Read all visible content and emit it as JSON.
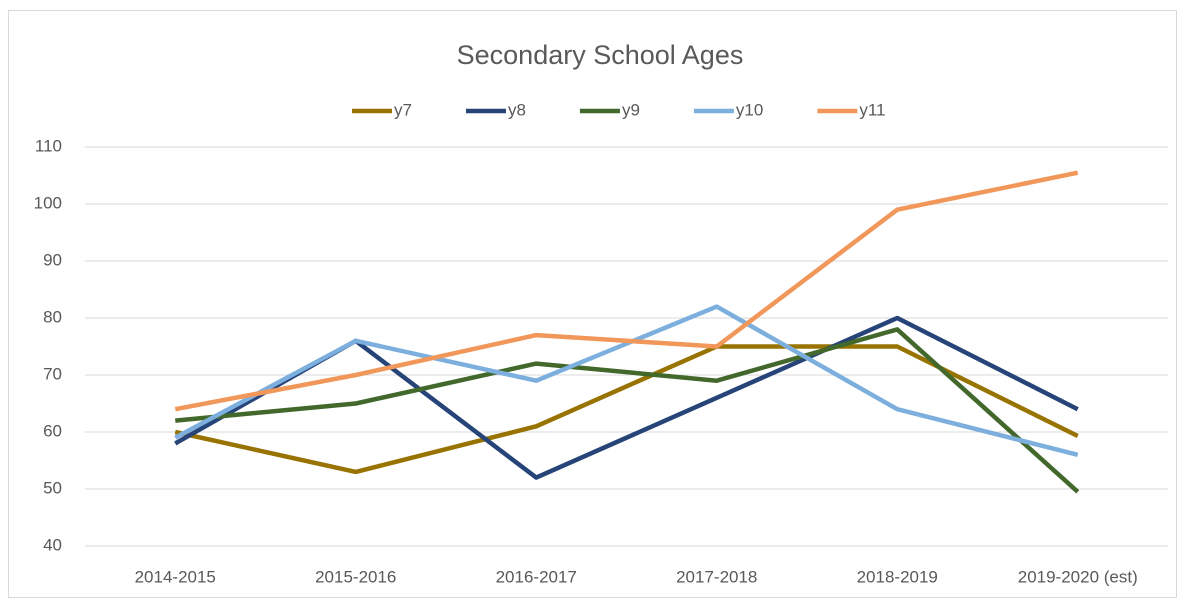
{
  "chart_data": {
    "type": "line",
    "title": "Secondary School Ages",
    "categories": [
      "2014-2015",
      "2015-2016",
      "2016-2017",
      "2017-2018",
      "2018-2019",
      "2019-2020 (est)"
    ],
    "series": [
      {
        "name": "y7",
        "color": "#997300",
        "values": [
          60,
          53,
          61,
          75,
          75,
          59.3
        ]
      },
      {
        "name": "y8",
        "color": "#264478",
        "values": [
          58,
          76,
          52,
          66,
          80,
          64
        ]
      },
      {
        "name": "y9",
        "color": "#43682b",
        "values": [
          62,
          65,
          72,
          69,
          78,
          49.5
        ]
      },
      {
        "name": "y10",
        "color": "#7cafdd",
        "values": [
          59,
          76,
          69,
          82,
          64,
          56
        ]
      },
      {
        "name": "y11",
        "color": "#f1975a",
        "values": [
          64,
          70,
          77,
          75,
          99,
          105.5
        ]
      }
    ],
    "ylim": [
      40,
      110
    ],
    "yticks": [
      40,
      50,
      60,
      70,
      80,
      90,
      100,
      110
    ],
    "grid": true,
    "legend": "top"
  }
}
